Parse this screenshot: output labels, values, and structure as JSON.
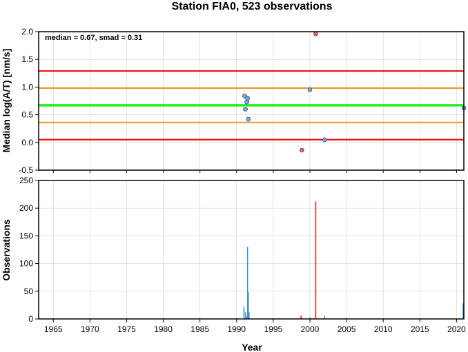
{
  "chart_data": [
    {
      "type": "scatter",
      "title": "Station FIA0, 523 observations",
      "annotation": "median = 0.67, smad = 0.31",
      "ylabel": "Median log(A/T) [nm/s]",
      "xlabel": "",
      "xlim": [
        1963,
        2021
      ],
      "ylim": [
        -0.5,
        2.0
      ],
      "yticks": [
        -0.5,
        0.0,
        0.5,
        1.0,
        1.5,
        2.0
      ],
      "ytick_labels": [
        "-0.5",
        "0.0",
        "0.5",
        "1.0",
        "1.5",
        "2.0"
      ],
      "xticks": [
        1965,
        1970,
        1975,
        1980,
        1985,
        1990,
        1995,
        2000,
        2005,
        2010,
        2015,
        2020
      ],
      "grid": true,
      "reference_lines": [
        {
          "y": 1.29,
          "color": "#ee1111"
        },
        {
          "y": 0.98,
          "color": "#f0a030"
        },
        {
          "y": 0.67,
          "color": "#22ee22"
        },
        {
          "y": 0.36,
          "color": "#f0a030"
        },
        {
          "y": 0.05,
          "color": "#ee1111"
        }
      ],
      "points": [
        {
          "x": 1991.1,
          "y": 0.84,
          "color": "#6fa8ef"
        },
        {
          "x": 1991.5,
          "y": 0.8,
          "color": "#6fa8ef"
        },
        {
          "x": 1991.4,
          "y": 0.73,
          "color": "#6fa8ef"
        },
        {
          "x": 1991.2,
          "y": 0.6,
          "color": "#6fa8ef"
        },
        {
          "x": 1991.6,
          "y": 0.42,
          "color": "#6fa8ef"
        },
        {
          "x": 1998.9,
          "y": -0.14,
          "color": "#f06060"
        },
        {
          "x": 2000.0,
          "y": 0.95,
          "color": "#6fa8ef"
        },
        {
          "x": 2000.8,
          "y": 1.96,
          "color": "#f06060"
        },
        {
          "x": 2002.0,
          "y": 0.05,
          "color": "#6fa8ef"
        },
        {
          "x": 2021.0,
          "y": 0.62,
          "color": "#6fa8ef"
        }
      ]
    },
    {
      "type": "bar",
      "title": "",
      "xlabel": "Year",
      "ylabel": "Observations",
      "xlim": [
        1963,
        2021
      ],
      "ylim": [
        0,
        250
      ],
      "yticks": [
        0,
        50,
        100,
        150,
        200,
        250
      ],
      "xticks": [
        1965,
        1970,
        1975,
        1980,
        1985,
        1990,
        1995,
        2000,
        2005,
        2010,
        2015,
        2020
      ],
      "grid": true,
      "bars": [
        {
          "x": 1991.0,
          "y": 22,
          "color": "#3a8fd8"
        },
        {
          "x": 1991.2,
          "y": 12,
          "color": "#3a8fd8"
        },
        {
          "x": 1991.4,
          "y": 5,
          "color": "#3a8fd8"
        },
        {
          "x": 1991.5,
          "y": 130,
          "color": "#3a8fd8"
        },
        {
          "x": 1991.6,
          "y": 48,
          "color": "#3a8fd8"
        },
        {
          "x": 1991.7,
          "y": 12,
          "color": "#3a8fd8"
        },
        {
          "x": 1998.8,
          "y": 6,
          "color": "#ee1111"
        },
        {
          "x": 2000.0,
          "y": 3,
          "color": "#3a8fd8"
        },
        {
          "x": 2000.8,
          "y": 212,
          "color": "#ee1111"
        },
        {
          "x": 2002.0,
          "y": 6,
          "color": "#3a8fd8"
        },
        {
          "x": 2020.9,
          "y": 28,
          "color": "#3a8fd8"
        }
      ]
    }
  ]
}
